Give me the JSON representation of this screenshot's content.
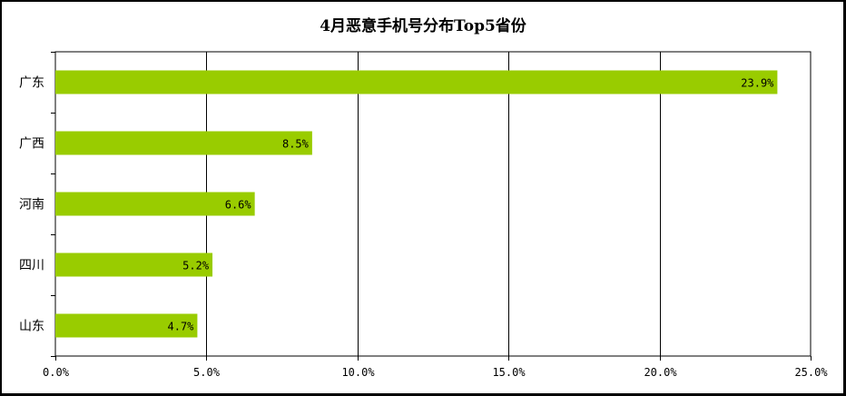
{
  "chart_data": {
    "type": "bar",
    "orientation": "horizontal",
    "title": "4月恶意手机号分布Top5省份",
    "categories": [
      "广东",
      "广西",
      "河南",
      "四川",
      "山东"
    ],
    "values": [
      23.9,
      8.5,
      6.6,
      5.2,
      4.7
    ],
    "value_labels": [
      "23.9%",
      "8.5%",
      "6.6%",
      "5.2%",
      "4.7%"
    ],
    "xlim": [
      0,
      25
    ],
    "x_ticks": [
      0,
      5,
      10,
      15,
      20,
      25
    ],
    "x_tick_labels": [
      "0.0%",
      "5.0%",
      "10.0%",
      "15.0%",
      "20.0%",
      "25.0%"
    ],
    "grid": true,
    "legend": "none",
    "bar_color": "#99CC00",
    "border_color": "#000000"
  }
}
